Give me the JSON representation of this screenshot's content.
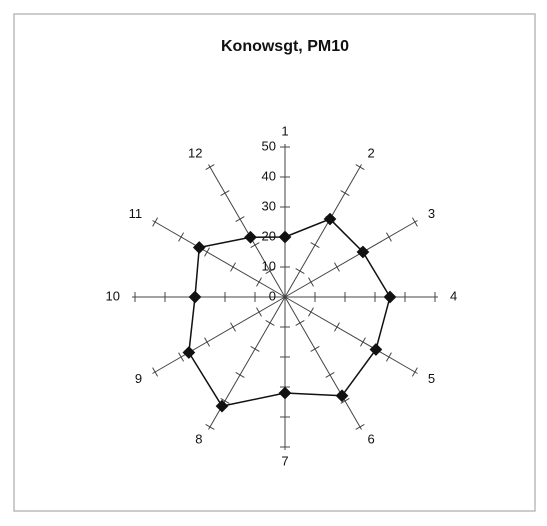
{
  "chart_data": {
    "type": "radar",
    "title": "Konowsgt, PM10",
    "categories": [
      "1",
      "2",
      "3",
      "4",
      "5",
      "6",
      "7",
      "8",
      "9",
      "10",
      "11",
      "12"
    ],
    "values": [
      20,
      30,
      30,
      35,
      35,
      38,
      32,
      42,
      37,
      30,
      33,
      23
    ],
    "color": "#111111",
    "ylim": [
      0,
      50
    ],
    "yticks": [
      0,
      10,
      20,
      30,
      40,
      50
    ]
  }
}
